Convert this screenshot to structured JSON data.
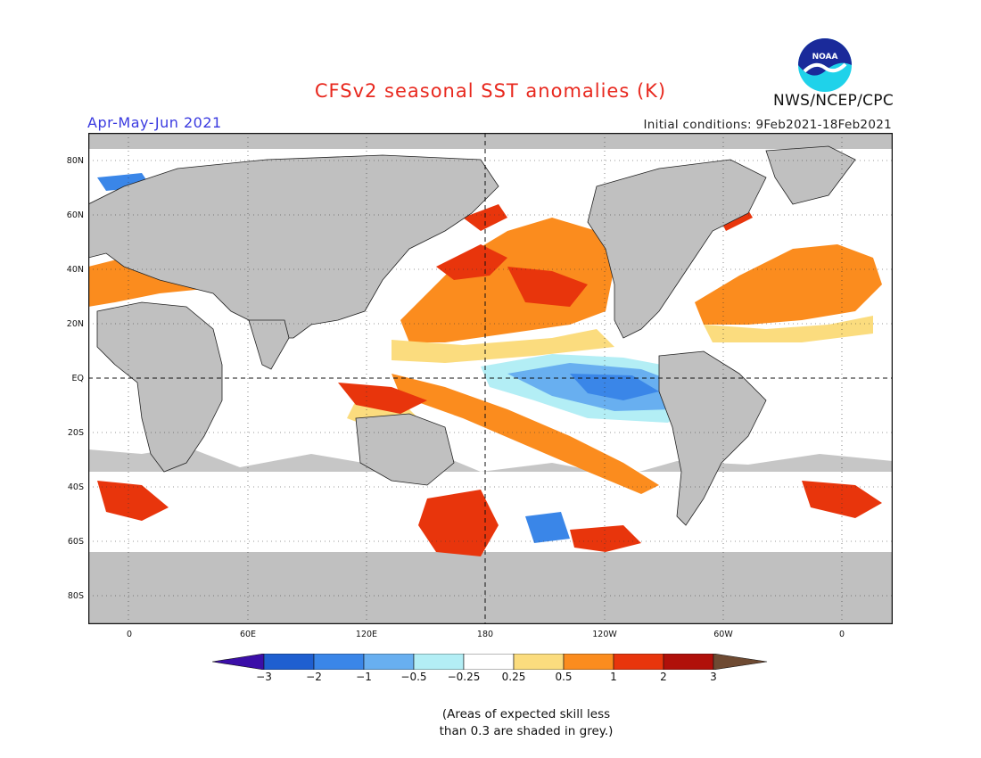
{
  "header": {
    "title": "CFSv2 seasonal SST anomalies (K)",
    "season": "Apr-May-Jun 2021",
    "initial_conditions": "Initial conditions: 9Feb2021-18Feb2021",
    "agency": "NWS/NCEP/CPC",
    "logo_text": "NOAA"
  },
  "map": {
    "lat_labels": [
      "80N",
      "60N",
      "40N",
      "20N",
      "EQ",
      "20S",
      "40S",
      "60S",
      "80S"
    ],
    "lon_labels": [
      "0",
      "60E",
      "120E",
      "180",
      "120W",
      "60W",
      "0"
    ],
    "colors": {
      "land": "#c0c0c0",
      "missing": "#c0c0c0",
      "neutral": "#ffffff"
    }
  },
  "legend": {
    "labels": [
      "−3",
      "−2",
      "−1",
      "−0.5",
      "−0.25",
      "0.25",
      "0.5",
      "1",
      "2",
      "3"
    ],
    "colors": [
      "#3b0ea8",
      "#1f5fd0",
      "#3a86e8",
      "#68aff0",
      "#b3eef5",
      "#ffffff",
      "#fbdc7e",
      "#fb8c1e",
      "#e8350c",
      "#b0100a",
      "#6e4a32"
    ]
  },
  "note": {
    "line1": "(Areas of expected skill less",
    "line2": "than 0.3 are shaded in grey.)"
  }
}
